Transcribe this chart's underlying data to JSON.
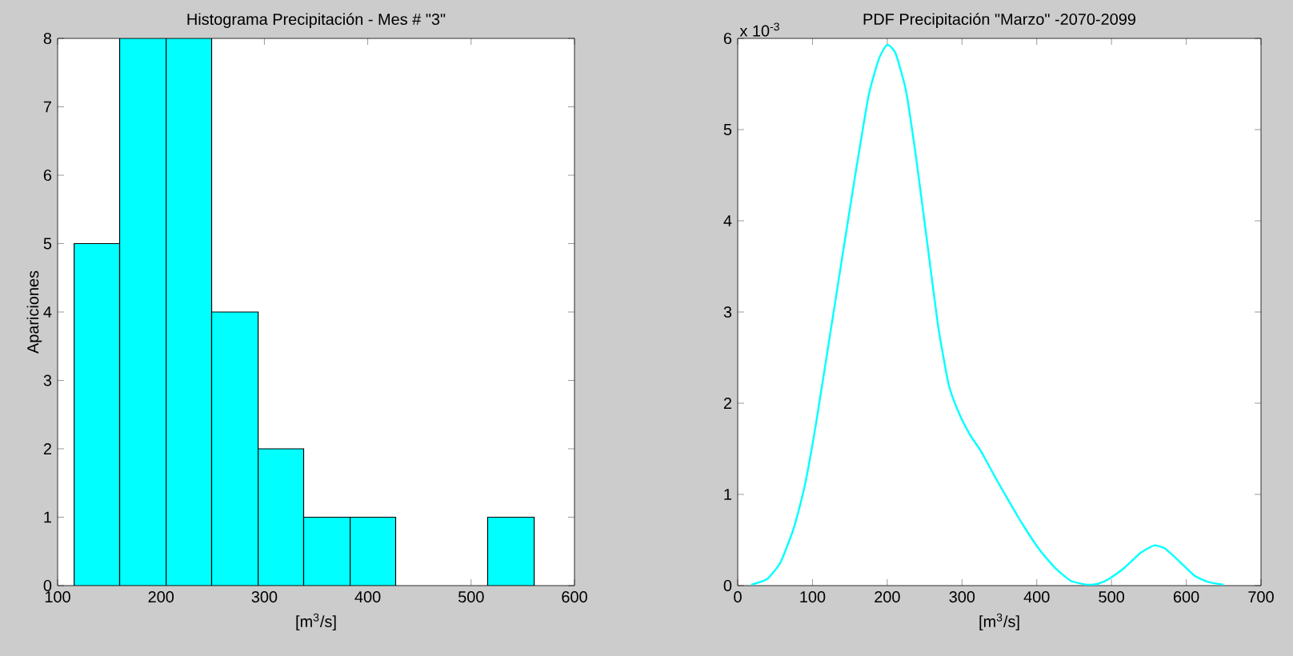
{
  "chart_data": [
    {
      "type": "histogram",
      "title": "Histograma Precipitación - Mes # \"3\"",
      "xlabel": "[m$^{3}$/s]",
      "ylabel": "Apariciones",
      "color": "#00ffff",
      "bins": [
        116,
        160,
        205,
        249,
        294,
        338,
        383,
        427,
        516,
        561
      ],
      "values": [
        5,
        8,
        8,
        4,
        2,
        1,
        1,
        0,
        1
      ],
      "xlim": [
        100,
        600
      ],
      "xticks": [
        100,
        200,
        300,
        400,
        500,
        600
      ],
      "ylim": [
        0,
        8
      ],
      "yticks": [
        0,
        1,
        2,
        3,
        4,
        5,
        6,
        7,
        8
      ]
    },
    {
      "type": "line",
      "title": "PDF Precipitación \"Marzo\" -2070-2099",
      "xlabel": "[m$^{3}$/s]",
      "color": "#00ffff",
      "x": [
        18,
        39,
        57,
        75,
        89,
        104,
        121,
        139,
        157,
        175,
        189,
        200,
        211,
        225,
        239,
        254,
        268,
        282,
        296,
        311,
        325,
        343,
        361,
        382,
        404,
        425,
        446,
        468,
        482,
        496,
        518,
        539,
        557,
        571,
        589,
        611,
        629,
        650
      ],
      "values": [
        0.01,
        0.07,
        0.25,
        0.63,
        1.07,
        1.74,
        2.62,
        3.56,
        4.49,
        5.37,
        5.78,
        5.93,
        5.84,
        5.43,
        4.67,
        3.73,
        2.85,
        2.21,
        1.89,
        1.65,
        1.48,
        1.21,
        0.95,
        0.66,
        0.39,
        0.19,
        0.05,
        0.01,
        0.02,
        0.07,
        0.2,
        0.36,
        0.44,
        0.41,
        0.28,
        0.11,
        0.04,
        0.01
      ],
      "xlim": [
        0,
        700
      ],
      "xticks": [
        0,
        100,
        200,
        300,
        400,
        500,
        600,
        700
      ],
      "ylim": [
        0,
        6
      ],
      "yticks": [
        0,
        1,
        2,
        3,
        4,
        5,
        6
      ],
      "annotations": [
        "x 10$^{-3}$"
      ]
    }
  ]
}
